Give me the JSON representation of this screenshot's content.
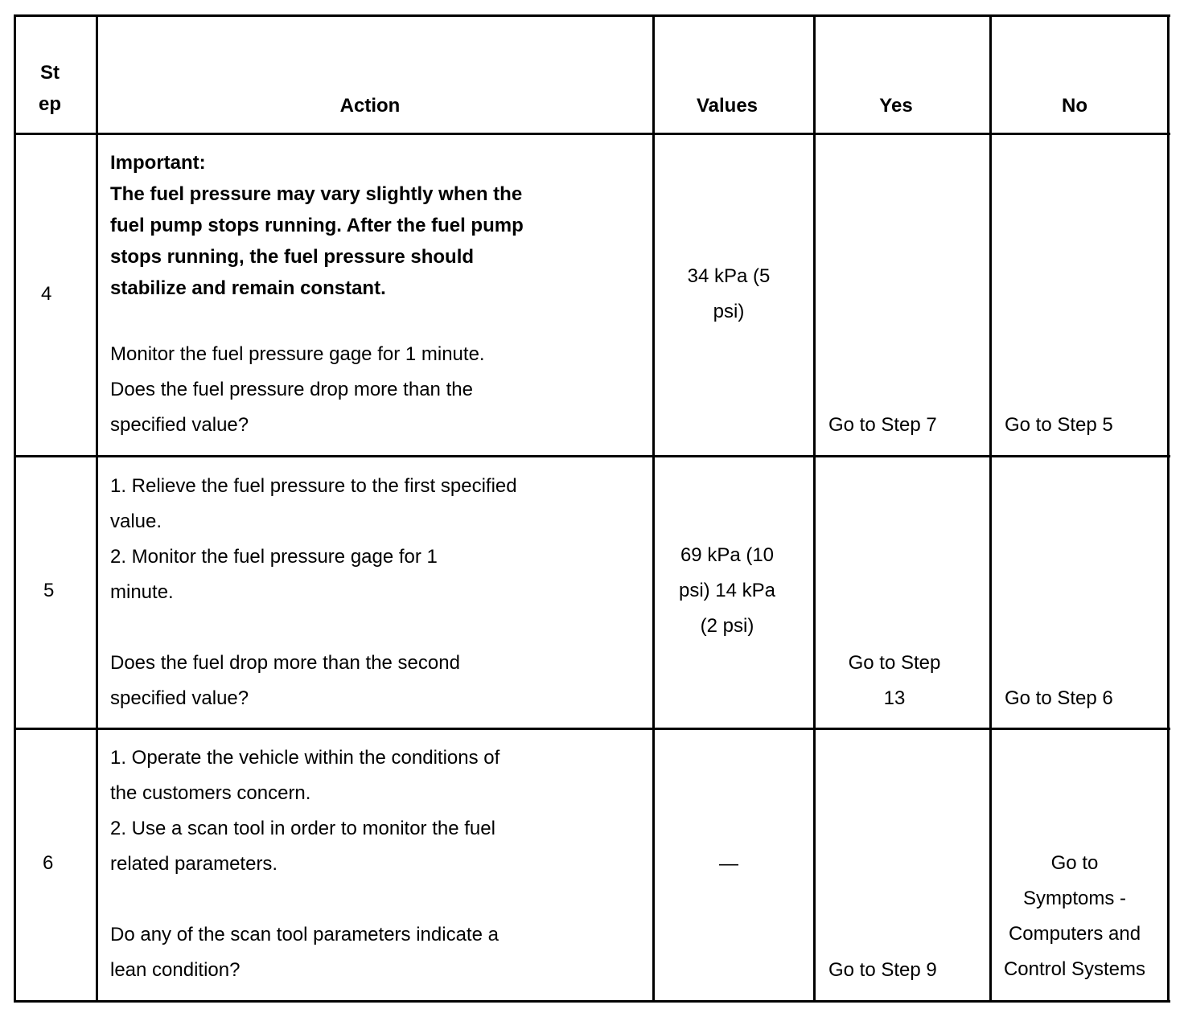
{
  "header": {
    "step": "St\nep",
    "action": "Action",
    "values": "Values",
    "yes": "Yes",
    "no": "No"
  },
  "rows": [
    {
      "step": "4",
      "important_label": "Important:",
      "important_text": "The fuel pressure may vary slightly when the\nfuel pump stops running. After the fuel pump\nstops running, the fuel pressure should\nstabilize and remain constant.",
      "action": " Monitor the fuel pressure gage for 1 minute.\nDoes the fuel pressure drop more than the\nspecified value?",
      "values": "34 kPa (5\npsi)",
      "yes": "Go to Step 7",
      "no": "Go to Step 5"
    },
    {
      "step": "5",
      "action": "1.   Relieve the fuel pressure to the first specified\nvalue.\n2.   Monitor the fuel pressure gage for 1\nminute.\n\n Does the fuel drop more than the second\nspecified value?",
      "values": "69 kPa (10\npsi) 14 kPa\n(2 psi)",
      "yes": "Go to Step\n13",
      "no": "Go to Step 6"
    },
    {
      "step": "6",
      "action": "1.   Operate the vehicle within the conditions of\nthe customers concern.\n2.   Use a scan tool in order to monitor the fuel\nrelated parameters.\n\n Do any of the scan tool parameters indicate a\nlean condition?",
      "values": "—",
      "yes": "Go to Step 9",
      "no": "Go to\nSymptoms -\nComputers and\nControl Systems"
    }
  ]
}
